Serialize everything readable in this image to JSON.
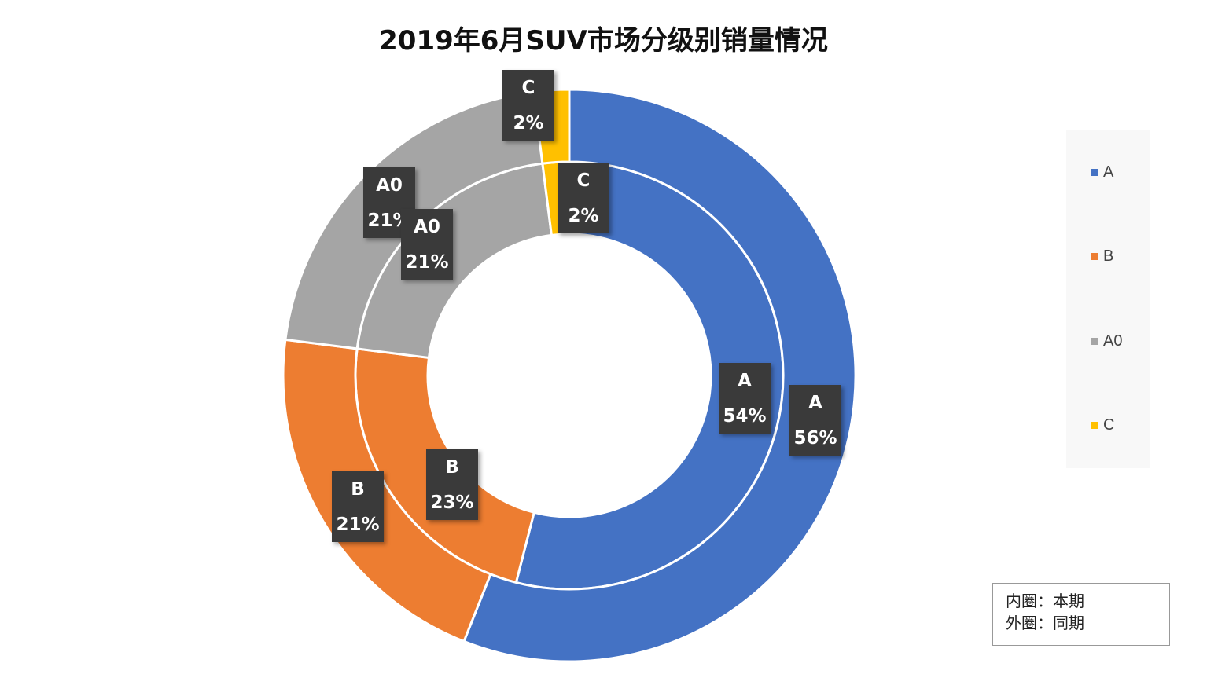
{
  "chart_data": {
    "type": "pie",
    "subtype": "doughnut",
    "title": "2019年6月SUV市场分级别销量情况",
    "categories": [
      "A",
      "B",
      "A0",
      "C"
    ],
    "colors": [
      "#4472C4",
      "#ED7D31",
      "#A5A5A5",
      "#FFC000"
    ],
    "series": [
      {
        "name": "本期",
        "ring": "inner",
        "values": [
          54,
          23,
          21,
          2
        ],
        "labels": [
          "54%",
          "23%",
          "21%",
          "2%"
        ]
      },
      {
        "name": "同期",
        "ring": "outer",
        "values": [
          56,
          21,
          21,
          2
        ],
        "labels": [
          "56%",
          "21%",
          "21%",
          "2%"
        ]
      }
    ],
    "legend": {
      "position": "right",
      "items": [
        "A",
        "B",
        "A0",
        "C"
      ]
    },
    "note": [
      "内圈：本期",
      "外圈：同期"
    ]
  }
}
